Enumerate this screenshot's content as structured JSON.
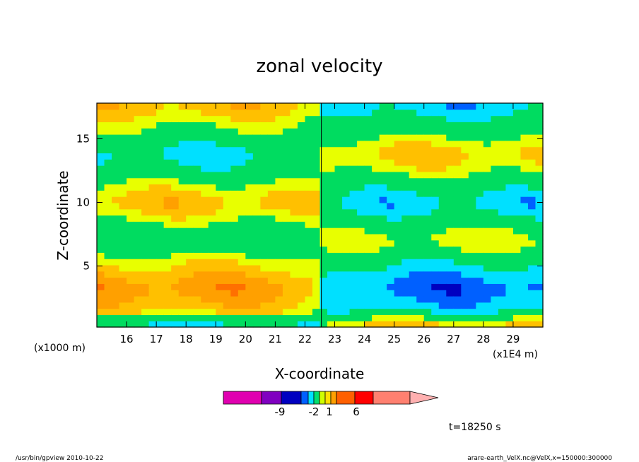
{
  "chart_data": {
    "type": "heatmap",
    "title": "zonal velocity",
    "xlabel": "X-coordinate",
    "ylabel": "Z-coordinate",
    "x_scale_label": "(x1E4 m)",
    "y_scale_label": "(x1000 m)",
    "x_tick_labels": [
      "16",
      "17",
      "18",
      "19",
      "20",
      "21",
      "22",
      "23",
      "24",
      "25",
      "26",
      "27",
      "28",
      "29"
    ],
    "y_tick_labels": [
      "5",
      "10",
      "15"
    ],
    "xlim": [
      15.0,
      30.0
    ],
    "ylim": [
      0.2,
      17.8
    ],
    "colorbar": {
      "tick_labels": [
        "-9",
        "-2",
        "1",
        "6"
      ],
      "colors": [
        "#e000b0",
        "#8000c0",
        "#0000c0",
        "#0060ff",
        "#00e0ff",
        "#00e070",
        "#d0ff00",
        "#ffe000",
        "#ffa000",
        "#ff6000",
        "#ff0000",
        "#ff8070",
        "#ffb0b0"
      ]
    },
    "time_label": "t=18250 s",
    "bands": [
      {
        "z": 17.5,
        "level": 2,
        "w": 1.0
      },
      {
        "z": 15.5,
        "level": 1,
        "w": 1.4
      },
      {
        "z": 14.0,
        "level": -2,
        "w": 1.8
      },
      {
        "z": 11.5,
        "level": 0,
        "w": 1.3
      },
      {
        "z": 10.0,
        "level": 2,
        "w": 1.6
      },
      {
        "z": 8.3,
        "level": 0,
        "w": 1.2
      },
      {
        "z": 7.0,
        "level": -1,
        "w": 1.3
      },
      {
        "z": 5.3,
        "level": 1,
        "w": 1.0
      },
      {
        "z": 3.3,
        "level": 3,
        "w": 1.5
      },
      {
        "z": 1.5,
        "level": 1,
        "w": 1.0
      },
      {
        "z": 0.5,
        "level": -2,
        "w": 0.6
      }
    ],
    "break_x": 22.55
  },
  "footer": {
    "left": "/usr/bin/gpview   2010-10-22",
    "right": "arare-earth_VelX.nc@VelX,x=150000:300000"
  }
}
